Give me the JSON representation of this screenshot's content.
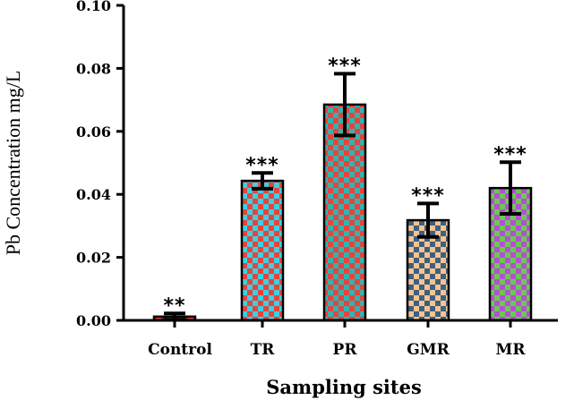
{
  "chart_data": {
    "type": "bar",
    "title": "",
    "xlabel": "Sampling sites",
    "ylabel": "Pb Concentration mg/L",
    "ylim": [
      0,
      0.1
    ],
    "yticks": [
      "0.00",
      "0.02",
      "0.04",
      "0.06",
      "0.08",
      "0.10"
    ],
    "categories": [
      "Control",
      "TR",
      "PR",
      "GMR",
      "MR"
    ],
    "values": [
      0.0012,
      0.0443,
      0.0685,
      0.0318,
      0.042
    ],
    "errors": [
      0.001,
      0.0025,
      0.0098,
      0.0053,
      0.0082
    ],
    "significance": [
      "**",
      "***",
      "***",
      "***",
      "***"
    ],
    "bar_patterns": [
      {
        "color_a": "#e8423f",
        "color_b": "#3a3a3a"
      },
      {
        "color_a": "#e8423f",
        "color_b": "#39d3df"
      },
      {
        "color_a": "#e8423f",
        "color_b": "#2fb5ae"
      },
      {
        "color_a": "#f5c48f",
        "color_b": "#3e5f82"
      },
      {
        "color_a": "#b44fd6",
        "color_b": "#6cc94f"
      }
    ],
    "grid": false,
    "legend": "none"
  }
}
